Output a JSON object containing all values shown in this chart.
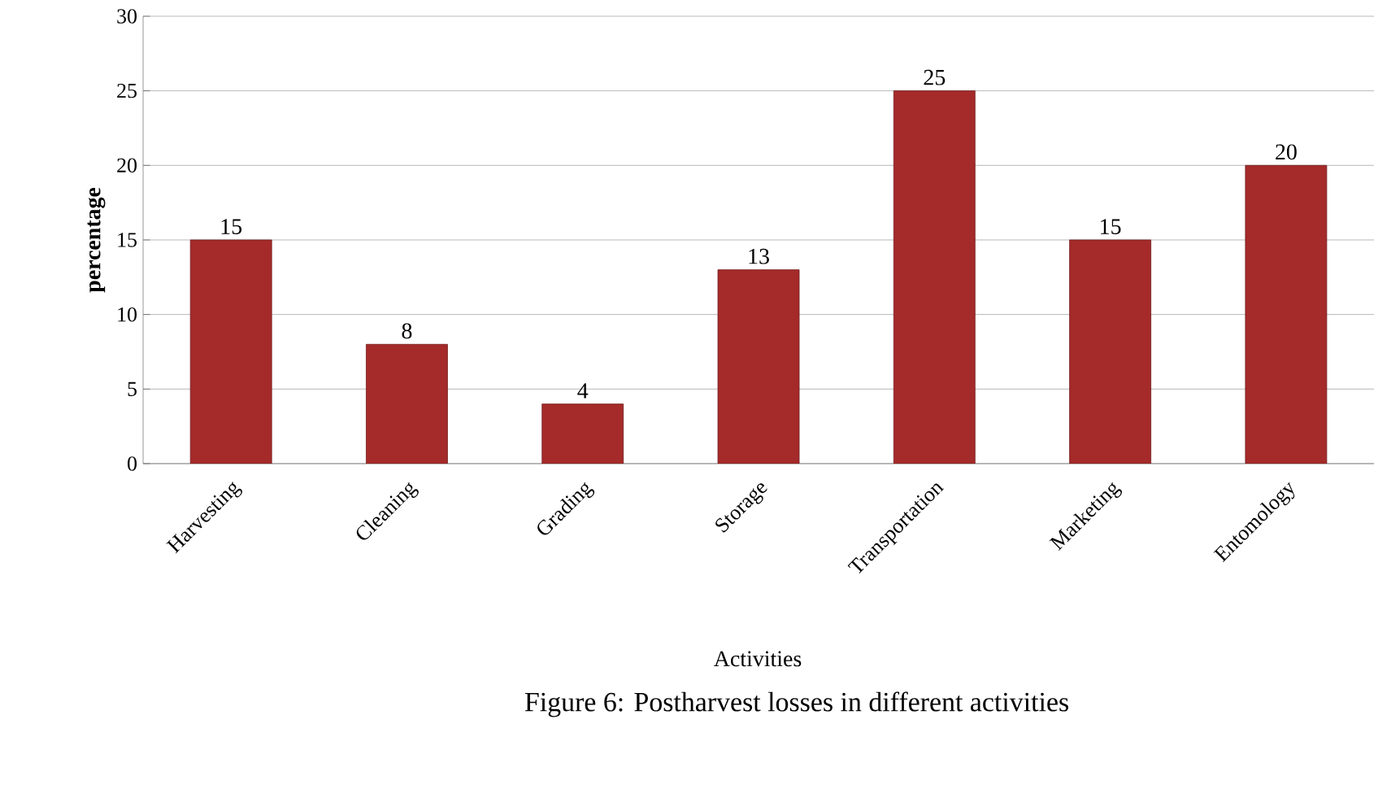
{
  "chart_data": {
    "type": "bar",
    "ylabel": "percentage",
    "xlabel": "Activities",
    "categories": [
      "Harvesting",
      "Cleaning",
      "Grading",
      "Storage",
      "Transportation",
      "Marketing",
      "Entomology"
    ],
    "values": [
      15,
      8,
      4,
      13,
      25,
      15,
      20
    ],
    "color": "#a52a2a",
    "ylim": [
      0,
      30
    ],
    "yticks": [
      0,
      5,
      10,
      15,
      20,
      25,
      30
    ],
    "grid": "y",
    "data_labels": true,
    "annotations": [
      "Figure 6: Postharvest losses in different activities"
    ]
  }
}
